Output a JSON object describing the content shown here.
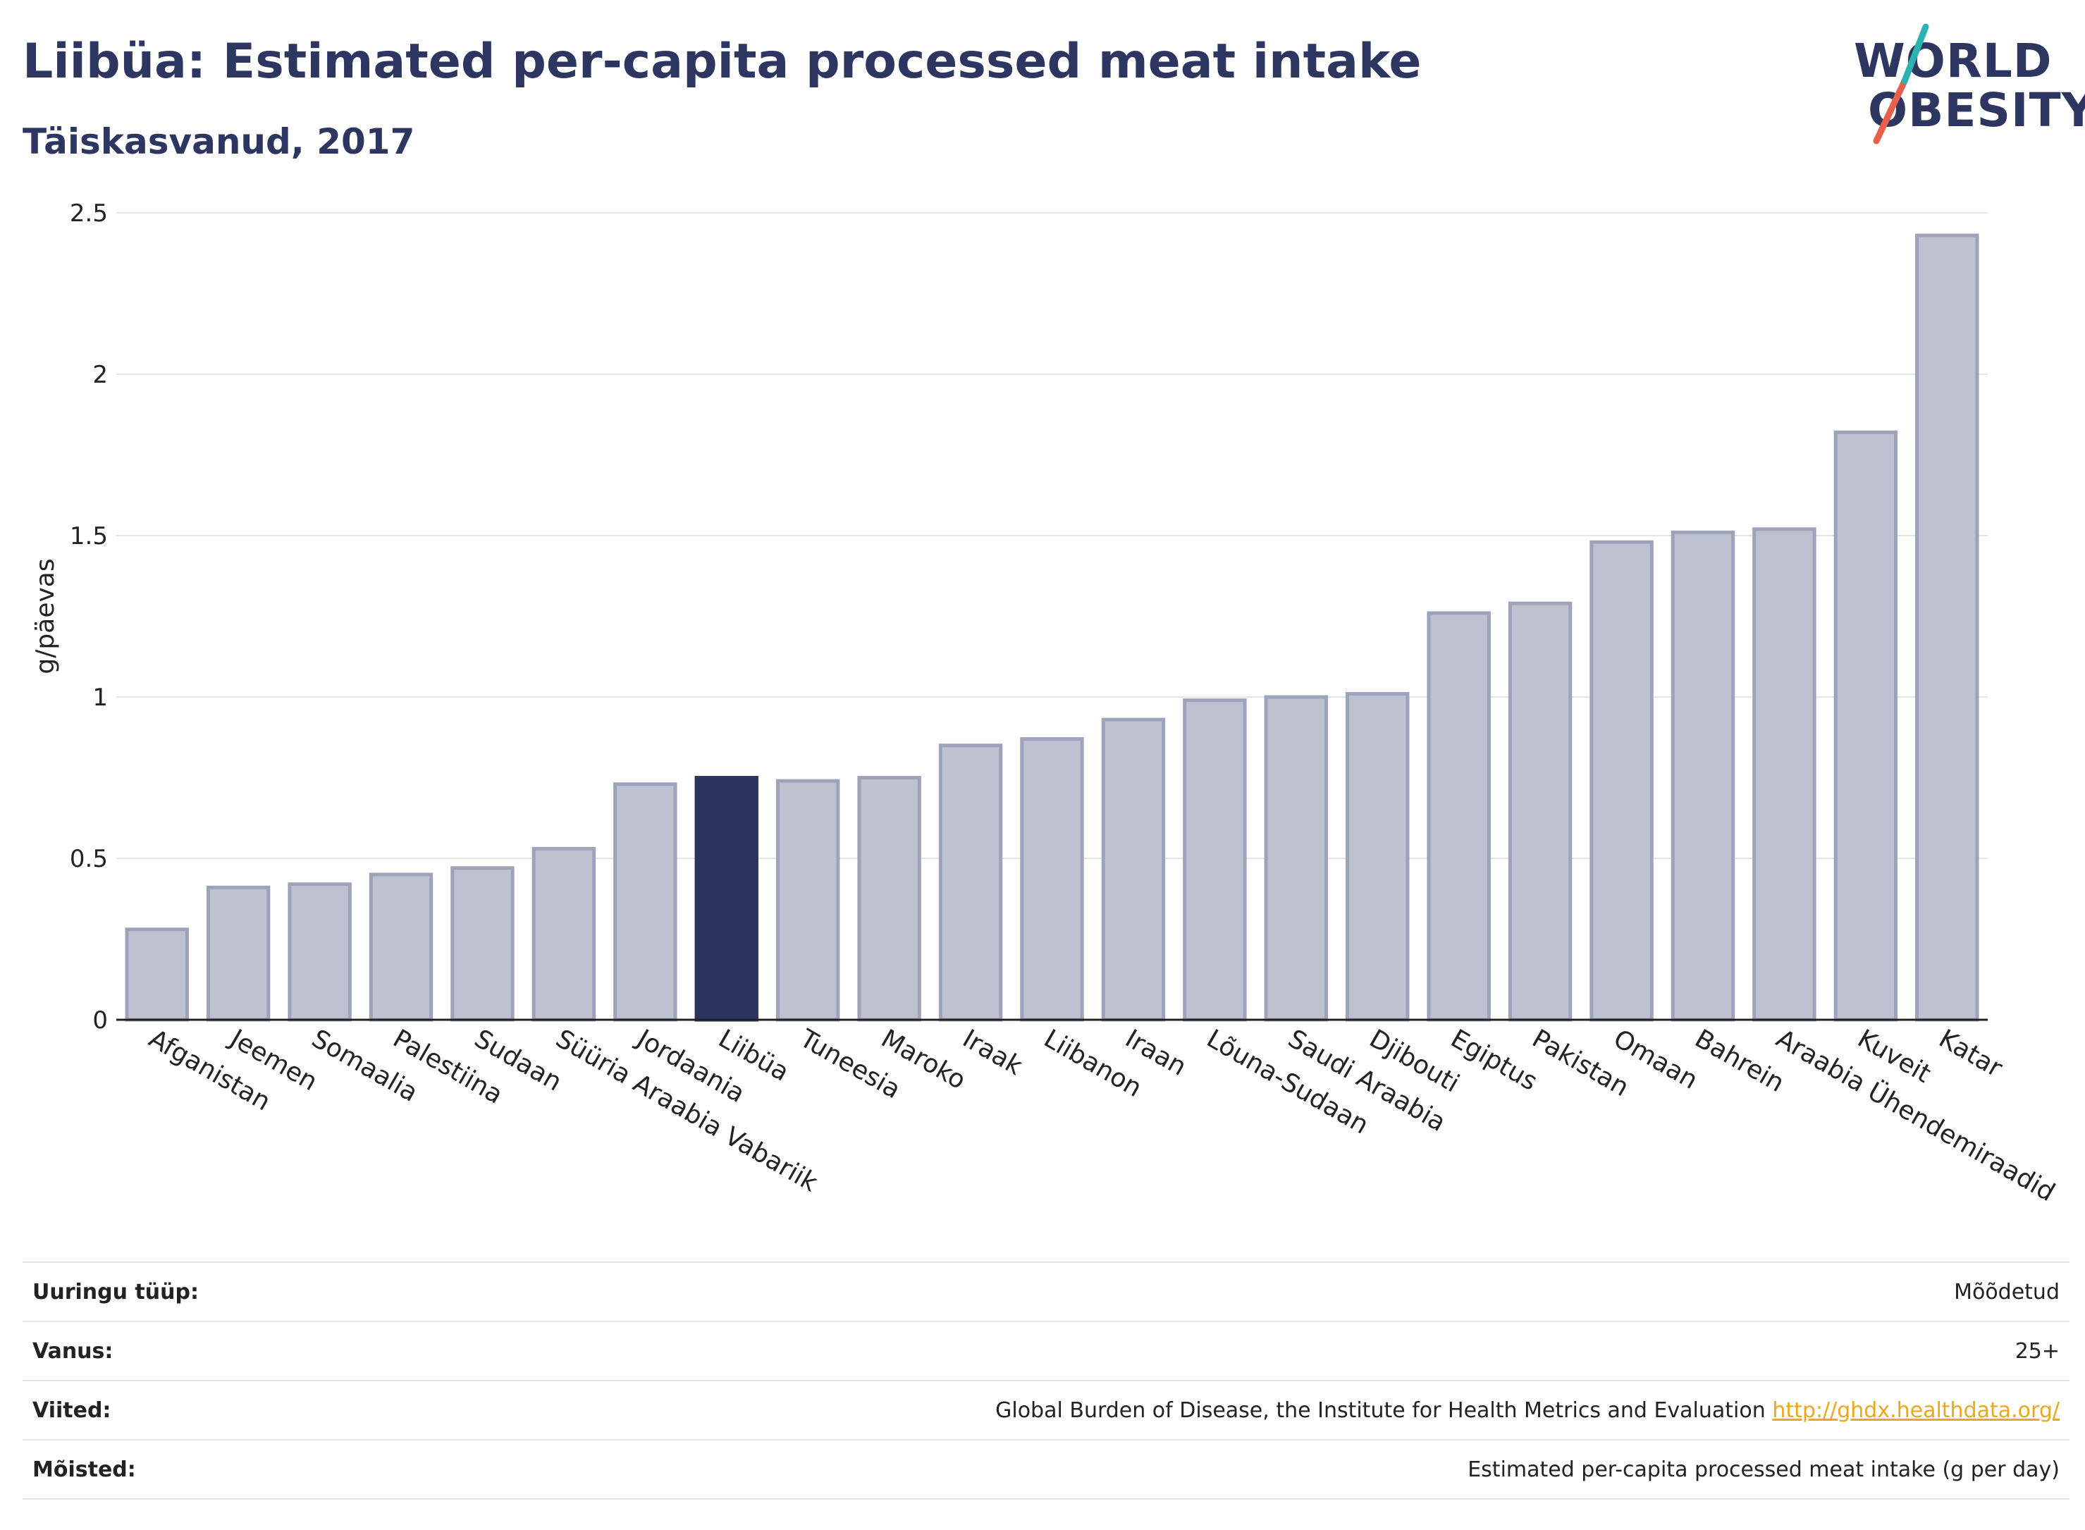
{
  "header": {
    "title": "Liibüa: Estimated per-capita processed meat intake",
    "subtitle": "Täiskasvanud, 2017"
  },
  "logo": {
    "line1": "WORLD",
    "line2": "OBESITY",
    "colors": [
      "#2d3561",
      "#2bb3b1",
      "#e8604c"
    ]
  },
  "chart_data": {
    "type": "bar",
    "ylabel": "g/päevas",
    "ylim": [
      0,
      2.5
    ],
    "yticks": [
      0,
      0.5,
      1,
      1.5,
      2,
      2.5
    ],
    "ytick_labels": [
      "0",
      "0.5",
      "1",
      "1.5",
      "2",
      "2.5"
    ],
    "grid": true,
    "highlight": "Liibüa",
    "colors": {
      "default": "#bec2d0",
      "default_stroke": "#9ea3b9",
      "highlight": "#2c3560"
    },
    "categories": [
      "Afganistan",
      "Jeemen",
      "Somaalia",
      "Palestiina",
      "Sudaan",
      "Süüria Araabia Vabariik",
      "Jordaania",
      "Liibüa",
      "Tuneesia",
      "Maroko",
      "Iraak",
      "Liibanon",
      "Iraan",
      "Lõuna-Sudaan",
      "Saudi Araabia",
      "Djibouti",
      "Egiptus",
      "Pakistan",
      "Omaan",
      "Bahrein",
      "Araabia Ühendemiraadid",
      "Kuveit",
      "Katar"
    ],
    "values": [
      0.28,
      0.41,
      0.42,
      0.45,
      0.47,
      0.53,
      0.73,
      0.75,
      0.74,
      0.75,
      0.85,
      0.87,
      0.93,
      0.99,
      1.0,
      1.01,
      1.26,
      1.29,
      1.48,
      1.51,
      1.52,
      1.82,
      2.43
    ]
  },
  "meta": {
    "rows": [
      {
        "key": "Uuringu tüüp:",
        "value": "Mõõdetud"
      },
      {
        "key": "Vanus:",
        "value": "25+"
      },
      {
        "key": "Viited:",
        "value": "Global Burden of Disease, the Institute for Health Metrics and Evaluation",
        "link": "http://ghdx.healthdata.org/"
      },
      {
        "key": "Mõisted:",
        "value": "Estimated per-capita processed meat intake (g per day)"
      }
    ]
  }
}
